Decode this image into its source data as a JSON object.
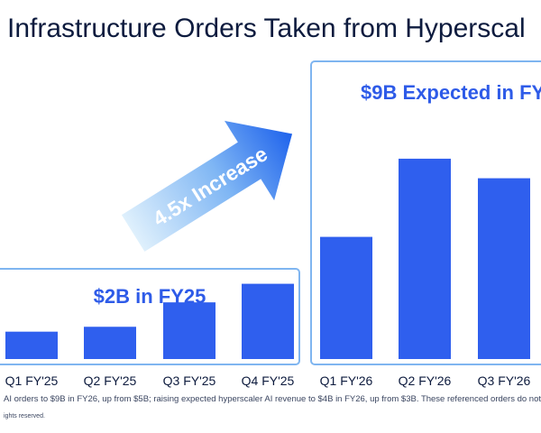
{
  "title": "Infrastructure Orders Taken from Hyperscal",
  "fy25_box_label": "$2B in FY25",
  "fy26_box_label": "$9B Expected in FY",
  "arrow_label": "4.5x Increase",
  "footnote": "AI orders to $9B in FY26, up from $5B; raising expected hyperscaler AI revenue to $4B in FY26, up from $3B. These referenced orders do not include Neoc",
  "rights": "ights reserved.",
  "colors": {
    "bar": "#2f5fee",
    "box_border": "#7fb5f0",
    "title": "#0d1b3e",
    "accent_text": "#2e5be8",
    "arrow_start": "#dff0fc",
    "arrow_end": "#1f63ec"
  },
  "chart_data": {
    "type": "bar",
    "title": "Infrastructure Orders Taken from Hyperscal",
    "categories": [
      "Q1 FY'25",
      "Q2 FY'25",
      "Q3 FY'25",
      "Q4 FY'25",
      "Q1 FY'26",
      "Q2 FY'26",
      "Q3 FY'26"
    ],
    "values": [
      0.28,
      0.33,
      0.58,
      0.77,
      1.25,
      2.05,
      1.85
    ],
    "groups": [
      {
        "label": "$2B in FY25",
        "categories": [
          "Q1 FY'25",
          "Q2 FY'25",
          "Q3 FY'25",
          "Q4 FY'25"
        ]
      },
      {
        "label": "$9B Expected in FY",
        "categories": [
          "Q1 FY'26",
          "Q2 FY'26",
          "Q3 FY'26"
        ]
      }
    ],
    "annotations": [
      "4.5x Increase"
    ],
    "xlabel": "",
    "ylabel": "",
    "ylim": [
      0,
      2.4
    ],
    "grid": false,
    "legend": "none"
  }
}
